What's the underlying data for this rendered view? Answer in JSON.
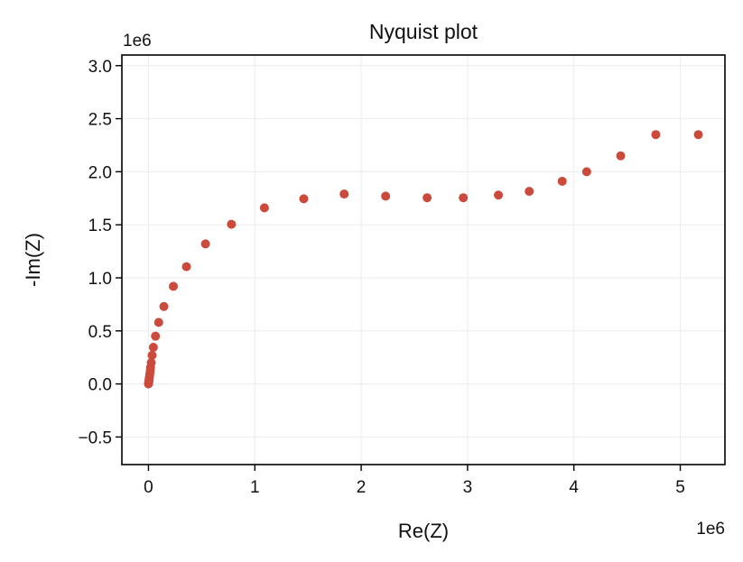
{
  "chart_data": {
    "type": "scatter",
    "title": "Nyquist plot",
    "xlabel": "Re(Z)",
    "ylabel": "-Im(Z)",
    "x_offset_label": "1e6",
    "y_offset_label": "1e6",
    "xlim": [
      -0.25,
      5.42
    ],
    "ylim": [
      -0.76,
      3.1
    ],
    "xticks": [
      0,
      1,
      2,
      3,
      4,
      5
    ],
    "xtick_labels": [
      "0",
      "1",
      "2",
      "3",
      "4",
      "5"
    ],
    "yticks": [
      -0.5,
      0.0,
      0.5,
      1.0,
      1.5,
      2.0,
      2.5,
      3.0
    ],
    "ytick_labels": [
      "−0.5",
      "0.0",
      "0.5",
      "1.0",
      "1.5",
      "2.0",
      "2.5",
      "3.0"
    ],
    "grid": true,
    "marker_color": "#cc4a3c",
    "series": [
      {
        "x": [
          0.0,
          0.001,
          0.002,
          0.003,
          0.005,
          0.007,
          0.009,
          0.012,
          0.016,
          0.02,
          0.026,
          0.034,
          0.046,
          0.066,
          0.096,
          0.145,
          0.234,
          0.357,
          0.536,
          0.78,
          1.09,
          1.46,
          1.84,
          2.23,
          2.62,
          2.96,
          3.29,
          3.58,
          3.89,
          4.12,
          4.44,
          4.77,
          5.17
        ],
        "y": [
          0.0,
          0.005,
          0.012,
          0.022,
          0.035,
          0.05,
          0.068,
          0.09,
          0.12,
          0.155,
          0.2,
          0.27,
          0.345,
          0.45,
          0.58,
          0.73,
          0.92,
          1.105,
          1.32,
          1.505,
          1.66,
          1.745,
          1.79,
          1.77,
          1.755,
          1.755,
          1.78,
          1.815,
          1.91,
          2.0,
          2.15,
          2.35,
          2.35
        ]
      }
    ]
  }
}
